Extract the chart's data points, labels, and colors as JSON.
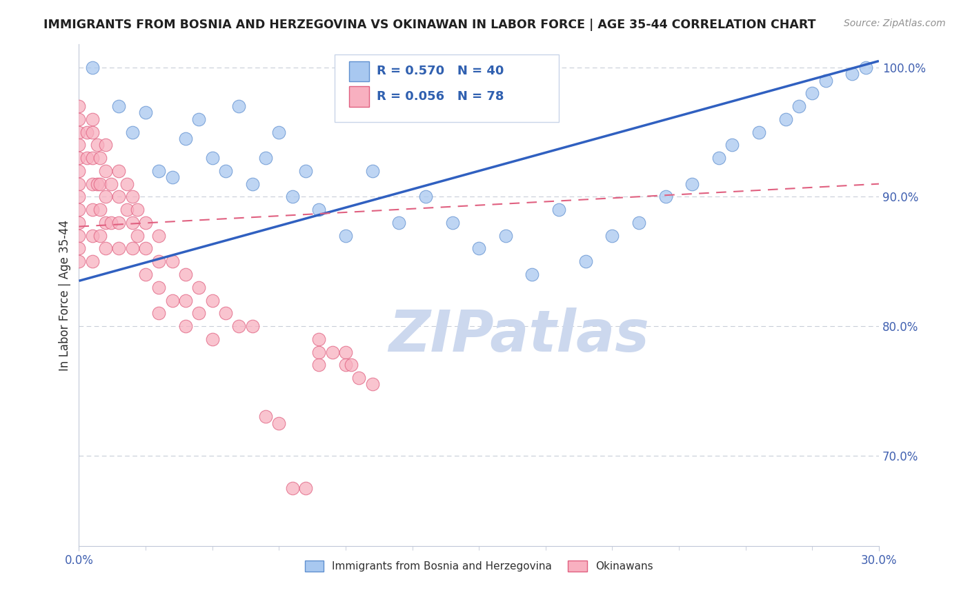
{
  "title": "IMMIGRANTS FROM BOSNIA AND HERZEGOVINA VS OKINAWAN IN LABOR FORCE | AGE 35-44 CORRELATION CHART",
  "source": "Source: ZipAtlas.com",
  "ylabel": "In Labor Force | Age 35-44",
  "xlim": [
    0.0,
    0.3
  ],
  "ylim": [
    0.63,
    1.018
  ],
  "ytick_vals": [
    0.7,
    0.8,
    0.9,
    1.0
  ],
  "ytick_labels": [
    "70.0%",
    "80.0%",
    "90.0%",
    "100.0%"
  ],
  "xtick_vals": [
    0.0,
    0.3
  ],
  "xtick_labels": [
    "0.0%",
    "30.0%"
  ],
  "legend1_label": "Immigrants from Bosnia and Herzegovina",
  "legend2_label": "Okinawans",
  "r1": 0.57,
  "n1": 40,
  "r2": 0.056,
  "n2": 78,
  "blue_scatter_color": "#A8C8F0",
  "blue_edge_color": "#6090D0",
  "pink_scatter_color": "#F8B0C0",
  "pink_edge_color": "#E06080",
  "trend_blue_color": "#3060C0",
  "trend_pink_color": "#E06080",
  "watermark_text": "ZIPatlas",
  "watermark_color": "#CCD8EE",
  "grid_color": "#C8CDD8",
  "blue_x": [
    0.005,
    0.015,
    0.02,
    0.025,
    0.03,
    0.035,
    0.04,
    0.045,
    0.05,
    0.055,
    0.06,
    0.065,
    0.07,
    0.075,
    0.08,
    0.085,
    0.09,
    0.1,
    0.11,
    0.12,
    0.13,
    0.14,
    0.15,
    0.16,
    0.17,
    0.18,
    0.19,
    0.2,
    0.21,
    0.22,
    0.23,
    0.24,
    0.245,
    0.255,
    0.265,
    0.27,
    0.275,
    0.28,
    0.29,
    0.295
  ],
  "blue_y": [
    1.0,
    0.97,
    0.95,
    0.965,
    0.92,
    0.915,
    0.945,
    0.96,
    0.93,
    0.92,
    0.97,
    0.91,
    0.93,
    0.95,
    0.9,
    0.92,
    0.89,
    0.87,
    0.92,
    0.88,
    0.9,
    0.88,
    0.86,
    0.87,
    0.84,
    0.89,
    0.85,
    0.87,
    0.88,
    0.9,
    0.91,
    0.93,
    0.94,
    0.95,
    0.96,
    0.97,
    0.98,
    0.99,
    0.995,
    1.0
  ],
  "pink_x": [
    0.0,
    0.0,
    0.0,
    0.0,
    0.0,
    0.0,
    0.0,
    0.0,
    0.0,
    0.0,
    0.0,
    0.0,
    0.0,
    0.003,
    0.003,
    0.005,
    0.005,
    0.005,
    0.005,
    0.005,
    0.005,
    0.005,
    0.007,
    0.007,
    0.008,
    0.008,
    0.008,
    0.008,
    0.01,
    0.01,
    0.01,
    0.01,
    0.01,
    0.012,
    0.012,
    0.015,
    0.015,
    0.015,
    0.015,
    0.018,
    0.018,
    0.02,
    0.02,
    0.02,
    0.022,
    0.022,
    0.025,
    0.025,
    0.025,
    0.03,
    0.03,
    0.03,
    0.03,
    0.035,
    0.035,
    0.04,
    0.04,
    0.04,
    0.045,
    0.045,
    0.05,
    0.05,
    0.055,
    0.06,
    0.065,
    0.07,
    0.075,
    0.08,
    0.085,
    0.09,
    0.09,
    0.09,
    0.095,
    0.1,
    0.1,
    0.102,
    0.105,
    0.11
  ],
  "pink_y": [
    0.97,
    0.96,
    0.95,
    0.94,
    0.93,
    0.92,
    0.91,
    0.9,
    0.89,
    0.88,
    0.87,
    0.86,
    0.85,
    0.95,
    0.93,
    0.96,
    0.95,
    0.93,
    0.91,
    0.89,
    0.87,
    0.85,
    0.94,
    0.91,
    0.93,
    0.91,
    0.89,
    0.87,
    0.94,
    0.92,
    0.9,
    0.88,
    0.86,
    0.91,
    0.88,
    0.92,
    0.9,
    0.88,
    0.86,
    0.91,
    0.89,
    0.9,
    0.88,
    0.86,
    0.89,
    0.87,
    0.88,
    0.86,
    0.84,
    0.87,
    0.85,
    0.83,
    0.81,
    0.85,
    0.82,
    0.84,
    0.82,
    0.8,
    0.83,
    0.81,
    0.82,
    0.79,
    0.81,
    0.8,
    0.8,
    0.79,
    0.79,
    0.79,
    0.78,
    0.79,
    0.78,
    0.77,
    0.78,
    0.78,
    0.77,
    0.77,
    0.76,
    0.755
  ],
  "pink_y_outliers": {
    "67": 0.675,
    "68": 0.675,
    "65": 0.73,
    "66": 0.725
  },
  "blue_trend_x0": 0.0,
  "blue_trend_y0": 0.835,
  "blue_trend_x1": 0.3,
  "blue_trend_y1": 1.005,
  "pink_trend_x0": 0.0,
  "pink_trend_y0": 0.877,
  "pink_trend_x1": 0.3,
  "pink_trend_y1": 0.91,
  "leg_r1_label": "R = 0.570   N = 40",
  "leg_r2_label": "R = 0.056   N = 78"
}
